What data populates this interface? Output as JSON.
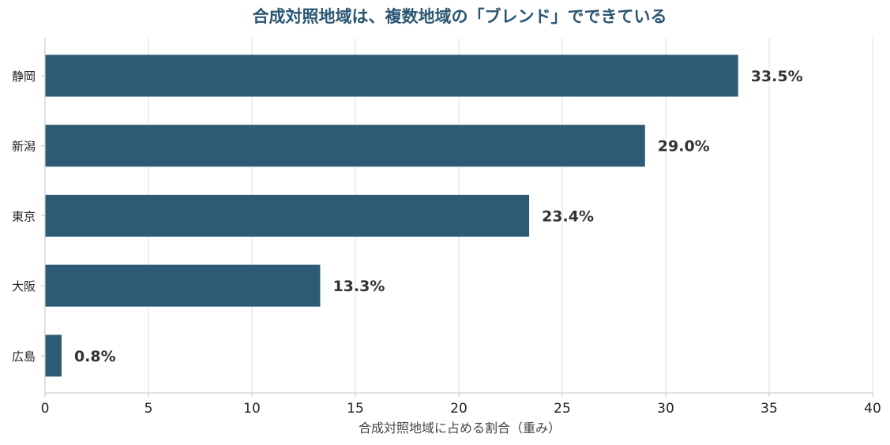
{
  "chart_data": {
    "type": "bar",
    "orientation": "horizontal",
    "title": "合成対照地域は、複数地域の「ブレンド」でできている",
    "xlabel": "合成対照地域に占める割合（重み）",
    "ylabel": "",
    "categories": [
      "静岡",
      "新潟",
      "東京",
      "大阪",
      "広島"
    ],
    "values": [
      33.5,
      29.0,
      23.4,
      13.3,
      0.8
    ],
    "value_labels": [
      "33.5%",
      "29.0%",
      "23.4%",
      "13.3%",
      "0.8%"
    ],
    "xlim": [
      0,
      40
    ],
    "xticks": [
      0,
      5,
      10,
      15,
      20,
      25,
      30,
      35,
      40
    ],
    "xtick_labels": [
      "0",
      "5",
      "10",
      "15",
      "20",
      "25",
      "30",
      "35",
      "40"
    ],
    "grid": "vertical",
    "legend": "none",
    "colors": {
      "bar": "#2d5a75",
      "title": "#2b5672",
      "grid": "#e6e6e6",
      "axis": "#cfcfcf",
      "value_label": "#333333"
    }
  }
}
